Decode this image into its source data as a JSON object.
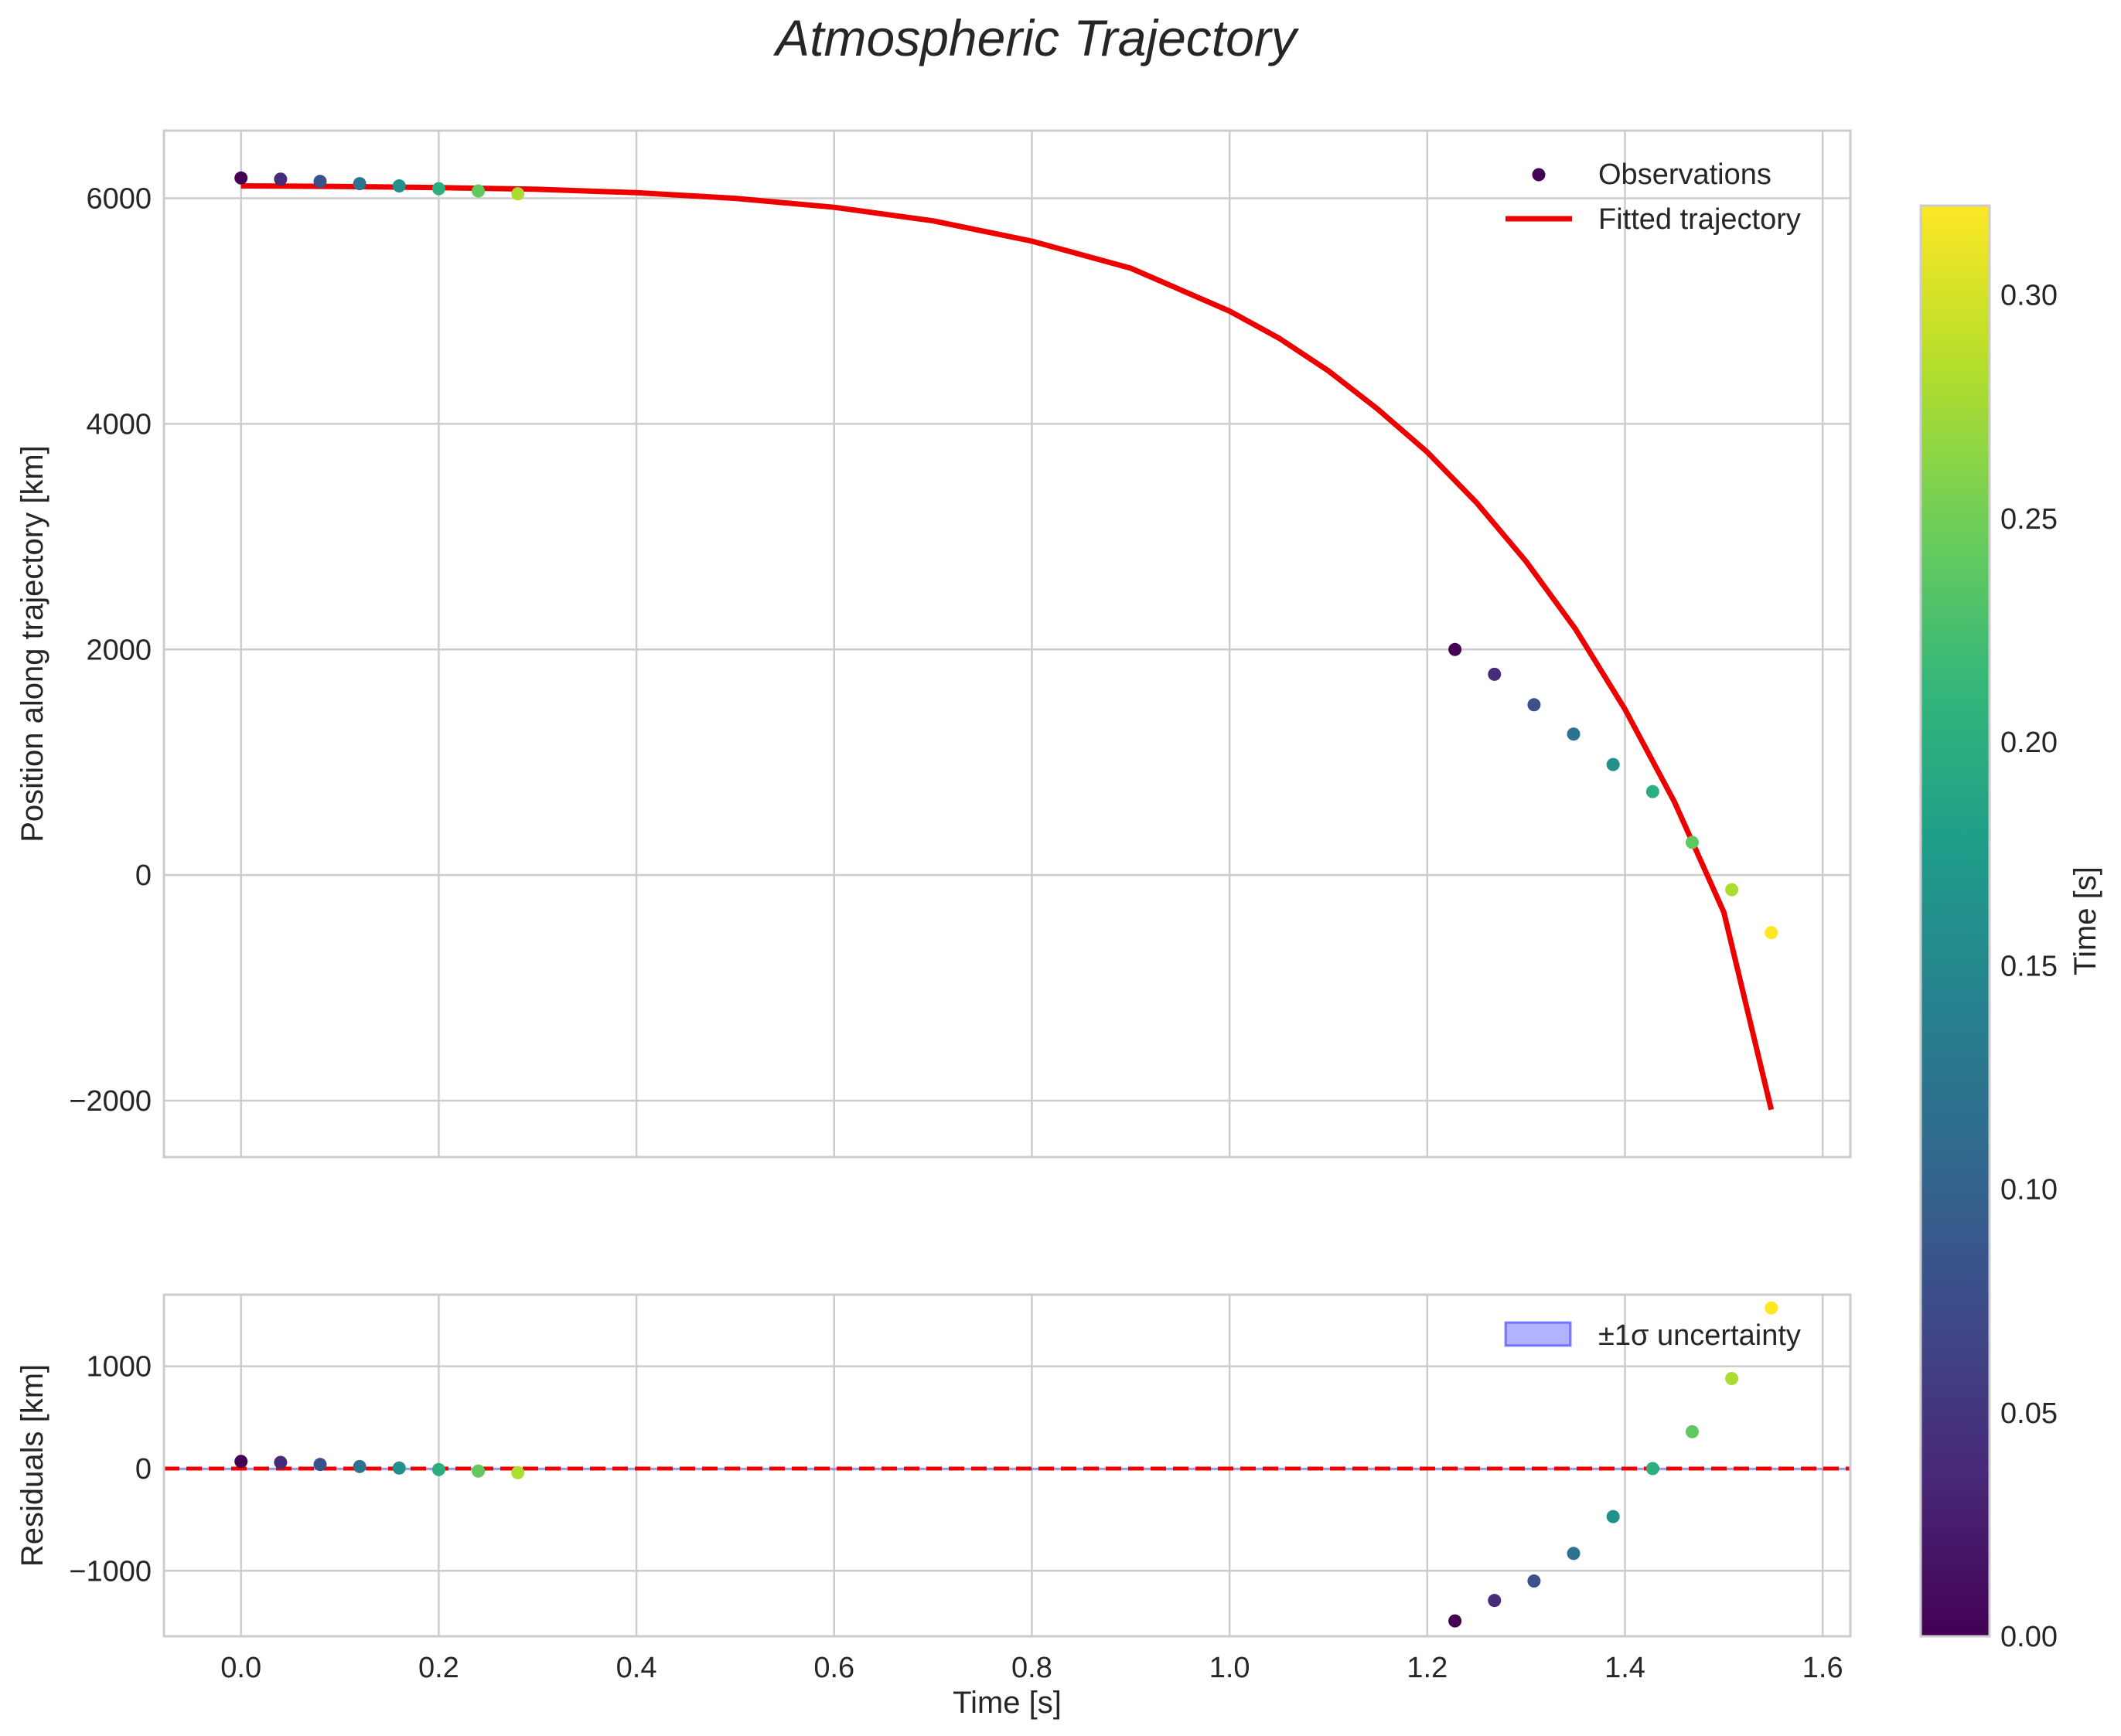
{
  "figure": {
    "title": "Atmospheric Trajectory"
  },
  "chart_data": [
    {
      "type": "scatter",
      "panel": "top",
      "title": "Atmospheric Trajectory",
      "xlabel": "",
      "ylabel": "Position along trajectory [km]",
      "xlim": [
        -0.078,
        1.628
      ],
      "ylim": [
        -2500,
        6600
      ],
      "xticks": [
        0.0,
        0.2,
        0.4,
        0.6,
        0.8,
        1.0,
        1.2,
        1.4,
        1.6
      ],
      "yticks": [
        -2000,
        0,
        2000,
        4000,
        6000
      ],
      "ytick_labels": [
        "−2000",
        "0",
        "2000",
        "4000",
        "6000"
      ],
      "grid": true,
      "legend_position": "top-right",
      "series": [
        {
          "name": "Observations",
          "kind": "scatter",
          "color_by": "time",
          "x": [
            0.0,
            0.04,
            0.08,
            0.12,
            0.16,
            0.2,
            0.24,
            0.28,
            1.228,
            1.268,
            1.308,
            1.348,
            1.388,
            1.428,
            1.468,
            1.508,
            1.548
          ],
          "y": [
            6180,
            6170,
            6150,
            6130,
            6110,
            6085,
            6065,
            6040,
            2000,
            1780,
            1510,
            1250,
            980,
            740,
            290,
            -130,
            -510
          ],
          "c": [
            0.0,
            0.04,
            0.08,
            0.12,
            0.16,
            0.2,
            0.24,
            0.28,
            0.0,
            0.04,
            0.08,
            0.12,
            0.16,
            0.2,
            0.24,
            0.28,
            0.32
          ]
        },
        {
          "name": "Fitted trajectory",
          "kind": "line",
          "color": "#ee0000",
          "x": [
            0.0,
            0.1,
            0.2,
            0.3,
            0.4,
            0.5,
            0.6,
            0.7,
            0.8,
            0.9,
            1.0,
            1.05,
            1.1,
            1.15,
            1.2,
            1.25,
            1.3,
            1.35,
            1.4,
            1.45,
            1.5,
            1.548
          ],
          "y": [
            6110,
            6105,
            6095,
            6080,
            6050,
            6000,
            5920,
            5800,
            5620,
            5380,
            5000,
            4760,
            4470,
            4130,
            3750,
            3300,
            2780,
            2180,
            1470,
            650,
            -330,
            -2080
          ]
        }
      ]
    },
    {
      "type": "scatter",
      "panel": "bottom",
      "xlabel": "Time [s]",
      "ylabel": "Residuals [km]",
      "xlim": [
        -0.078,
        1.628
      ],
      "ylim": [
        -1640,
        1700
      ],
      "xticks": [
        0.0,
        0.2,
        0.4,
        0.6,
        0.8,
        1.0,
        1.2,
        1.4,
        1.6
      ],
      "xtick_labels": [
        "0.0",
        "0.2",
        "0.4",
        "0.6",
        "0.8",
        "1.0",
        "1.2",
        "1.4",
        "1.6"
      ],
      "yticks": [
        -1000,
        0,
        1000
      ],
      "ytick_labels": [
        "−1000",
        "0",
        "1000"
      ],
      "grid": true,
      "legend_position": "top-right",
      "uncertainty_band": {
        "name": "±1σ uncertainty",
        "lower": -5,
        "upper": 5,
        "color": "#0000ff"
      },
      "zero_line": {
        "y": 0,
        "color": "#ee0000",
        "style": "dashed"
      },
      "series": [
        {
          "name": "Residuals",
          "kind": "scatter",
          "color_by": "time",
          "x": [
            0.0,
            0.04,
            0.08,
            0.12,
            0.16,
            0.2,
            0.24,
            0.28,
            1.228,
            1.268,
            1.308,
            1.348,
            1.388,
            1.428,
            1.468,
            1.508,
            1.548
          ],
          "y": [
            70,
            60,
            40,
            20,
            5,
            -10,
            -25,
            -40,
            -1490,
            -1290,
            -1100,
            -830,
            -470,
            0,
            360,
            880,
            1570
          ],
          "c": [
            0.0,
            0.04,
            0.08,
            0.12,
            0.16,
            0.2,
            0.24,
            0.28,
            0.0,
            0.04,
            0.08,
            0.12,
            0.16,
            0.2,
            0.24,
            0.28,
            0.32
          ]
        }
      ]
    }
  ],
  "colorbar": {
    "label": "Time [s]",
    "cmap": "viridis",
    "range": [
      0.0,
      0.32
    ],
    "ticks": [
      0.0,
      0.05,
      0.1,
      0.15,
      0.2,
      0.25,
      0.3
    ],
    "tick_labels": [
      "0.00",
      "0.05",
      "0.10",
      "0.15",
      "0.20",
      "0.25",
      "0.30"
    ],
    "viridis_stops": [
      "#440154",
      "#482878",
      "#3e4989",
      "#31688e",
      "#26828e",
      "#1f9e89",
      "#35b779",
      "#6ece58",
      "#b5de2b",
      "#fde725"
    ]
  },
  "style": {
    "grid_color": "#cccccc",
    "spine_color": "#cccccc",
    "text_color": "#262626",
    "fit_color": "#ee0000",
    "band_color": "#0000ff"
  }
}
